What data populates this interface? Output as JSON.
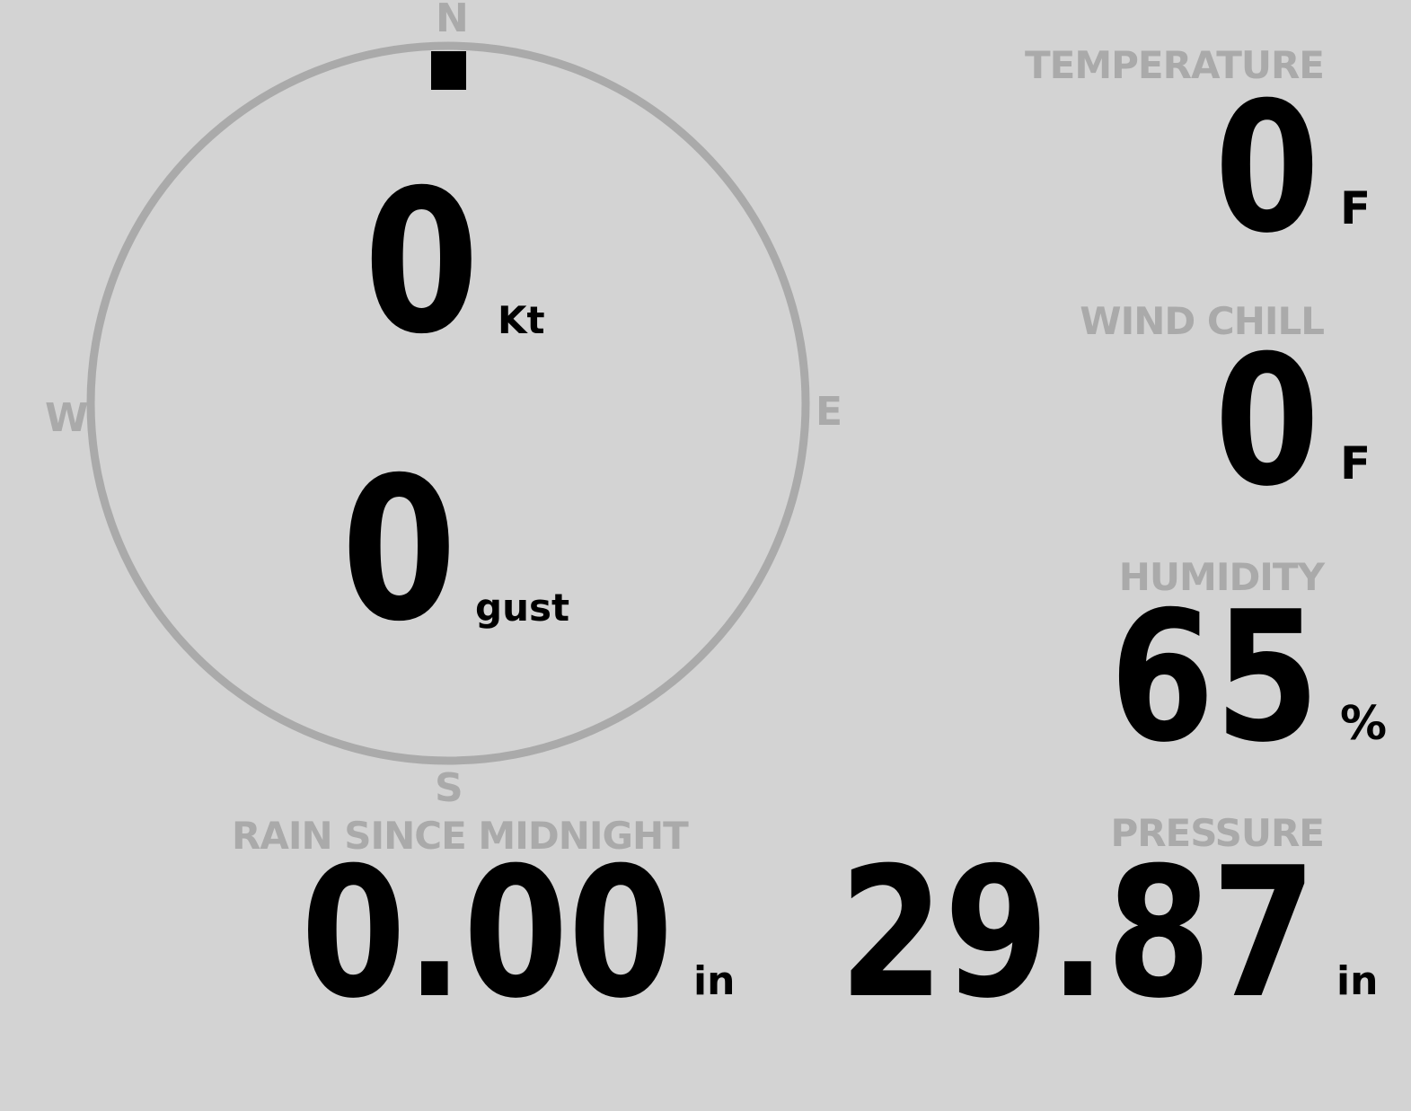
{
  "compass": {
    "cardinals": {
      "n": "N",
      "e": "E",
      "s": "S",
      "w": "W"
    },
    "wind_direction_deg": 0,
    "ring_color": "#aaaaaa",
    "needle_color": "#000000"
  },
  "wind": {
    "speed": "0",
    "speed_unit": "Kt",
    "gust": "0",
    "gust_unit": "gust"
  },
  "temperature": {
    "label": "TEMPERATURE",
    "value": "0",
    "unit": "F"
  },
  "wind_chill": {
    "label": "WIND CHILL",
    "value": "0",
    "unit": "F"
  },
  "humidity": {
    "label": "HUMIDITY",
    "value": "65",
    "unit": "%"
  },
  "pressure": {
    "label": "PRESSURE",
    "value": "29.87",
    "unit": "in"
  },
  "rain": {
    "label": "RAIN SINCE MIDNIGHT",
    "value": "0.00",
    "unit": "in"
  },
  "colors": {
    "background": "#d3d3d3",
    "label": "#aaaaaa",
    "value": "#000000"
  }
}
